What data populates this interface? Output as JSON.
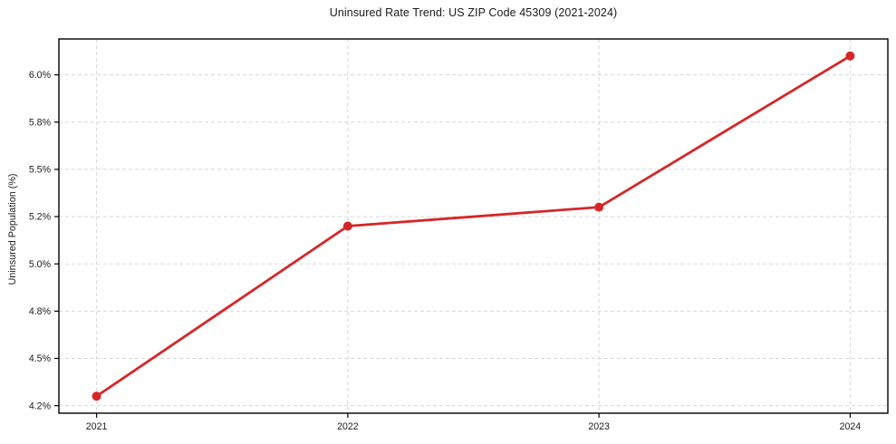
{
  "chart_data": {
    "type": "line",
    "title": "Uninsured Rate Trend: US ZIP Code 45309 (2021-2024)",
    "xlabel": "",
    "ylabel": "Uninsured Population (%)",
    "x": [
      2021,
      2022,
      2023,
      2024
    ],
    "series": [
      {
        "name": "Uninsured Population (%)",
        "values": [
          4.3,
          5.2,
          5.3,
          6.1
        ]
      }
    ],
    "xticks": [
      {
        "v": 2021,
        "label": "2021"
      },
      {
        "v": 2022,
        "label": "2022"
      },
      {
        "v": 2023,
        "label": "2023"
      },
      {
        "v": 2024,
        "label": "2024"
      }
    ],
    "yticks": [
      {
        "v": 4.25,
        "label": "4.2%"
      },
      {
        "v": 4.5,
        "label": "4.5%"
      },
      {
        "v": 4.75,
        "label": "4.8%"
      },
      {
        "v": 5.0,
        "label": "5.0%"
      },
      {
        "v": 5.25,
        "label": "5.2%"
      },
      {
        "v": 5.5,
        "label": "5.5%"
      },
      {
        "v": 5.75,
        "label": "5.8%"
      },
      {
        "v": 6.0,
        "label": "6.0%"
      }
    ],
    "xlim": [
      2020.85,
      2024.15
    ],
    "ylim": [
      4.21,
      6.19
    ],
    "grid": true,
    "grid_style": "dashed",
    "legend": false,
    "line_color": "#d62728",
    "marker": "circle",
    "grid_color": "#d8d8d8",
    "spine_color": "#000000",
    "background_color": "#ffffff"
  }
}
